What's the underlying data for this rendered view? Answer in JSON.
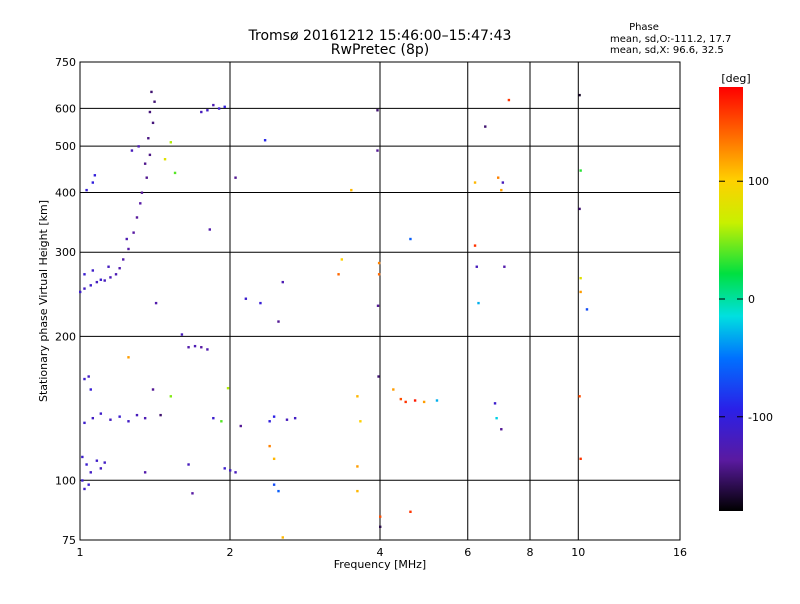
{
  "header": {
    "title_line1": "Tromsø 20161212 15:46:00–15:47:43",
    "title_line2": "RwPretec (8p)",
    "phase_label": "Phase",
    "phase_line1": "mean, sd,O:-111.2, 17.7",
    "phase_line2": "mean, sd,X:  96.6, 32.5"
  },
  "colorbar": {
    "label": "[deg]",
    "ticks": [
      {
        "value": 100,
        "label": "100"
      },
      {
        "value": 0,
        "label": "0"
      },
      {
        "value": -100,
        "label": "-100"
      }
    ],
    "range": [
      -180,
      180
    ]
  },
  "chart_data": {
    "type": "scatter",
    "xlabel": "Frequency [MHz]",
    "ylabel": "Stationary phase Virtual Height [km]",
    "xscale": "log",
    "yscale": "log",
    "xlim": [
      1,
      16
    ],
    "ylim": [
      75,
      750
    ],
    "xticks": [
      {
        "value": 1,
        "label": "1"
      },
      {
        "value": 2,
        "label": "2"
      },
      {
        "value": 4,
        "label": "4"
      },
      {
        "value": 6,
        "label": "6"
      },
      {
        "value": 8,
        "label": "8"
      },
      {
        "value": 10,
        "label": "10"
      },
      {
        "value": 16,
        "label": "16"
      }
    ],
    "yticks": [
      {
        "value": 75,
        "label": "75"
      },
      {
        "value": 100,
        "label": "100"
      },
      {
        "value": 200,
        "label": "200"
      },
      {
        "value": 300,
        "label": "300"
      },
      {
        "value": 400,
        "label": "400"
      },
      {
        "value": 500,
        "label": "500"
      },
      {
        "value": 600,
        "label": "600"
      },
      {
        "value": 750,
        "label": "750"
      }
    ],
    "grid": true,
    "points": [
      {
        "x": 1.0,
        "y": 248,
        "phase": -110
      },
      {
        "x": 1.02,
        "y": 252,
        "phase": -115
      },
      {
        "x": 1.05,
        "y": 256,
        "phase": -112
      },
      {
        "x": 1.08,
        "y": 260,
        "phase": -118
      },
      {
        "x": 1.1,
        "y": 263,
        "phase": -110
      },
      {
        "x": 1.12,
        "y": 262,
        "phase": -120
      },
      {
        "x": 1.15,
        "y": 266,
        "phase": -122
      },
      {
        "x": 1.18,
        "y": 270,
        "phase": -125
      },
      {
        "x": 1.2,
        "y": 278,
        "phase": -128
      },
      {
        "x": 1.22,
        "y": 290,
        "phase": -130
      },
      {
        "x": 1.25,
        "y": 305,
        "phase": -132
      },
      {
        "x": 1.28,
        "y": 330,
        "phase": -135
      },
      {
        "x": 1.3,
        "y": 355,
        "phase": -138
      },
      {
        "x": 1.33,
        "y": 400,
        "phase": -140
      },
      {
        "x": 1.35,
        "y": 460,
        "phase": -142
      },
      {
        "x": 1.37,
        "y": 520,
        "phase": -145
      },
      {
        "x": 1.38,
        "y": 590,
        "phase": -148
      },
      {
        "x": 1.39,
        "y": 650,
        "phase": -150
      },
      {
        "x": 1.02,
        "y": 270,
        "phase": -108
      },
      {
        "x": 1.06,
        "y": 275,
        "phase": -112
      },
      {
        "x": 1.14,
        "y": 280,
        "phase": -118
      },
      {
        "x": 1.24,
        "y": 320,
        "phase": -126
      },
      {
        "x": 1.32,
        "y": 380,
        "phase": -134
      },
      {
        "x": 1.36,
        "y": 430,
        "phase": -141
      },
      {
        "x": 1.38,
        "y": 480,
        "phase": -144
      },
      {
        "x": 1.4,
        "y": 560,
        "phase": -147
      },
      {
        "x": 1.41,
        "y": 620,
        "phase": -149
      },
      {
        "x": 1.03,
        "y": 405,
        "phase": -105
      },
      {
        "x": 1.06,
        "y": 420,
        "phase": -100
      },
      {
        "x": 1.07,
        "y": 435,
        "phase": -102
      },
      {
        "x": 1.27,
        "y": 490,
        "phase": -120
      },
      {
        "x": 1.31,
        "y": 500,
        "phase": -125
      },
      {
        "x": 1.52,
        "y": 510,
        "phase": 60
      },
      {
        "x": 1.55,
        "y": 440,
        "phase": 40
      },
      {
        "x": 1.48,
        "y": 470,
        "phase": 80
      },
      {
        "x": 1.75,
        "y": 590,
        "phase": -120
      },
      {
        "x": 1.8,
        "y": 595,
        "phase": -115
      },
      {
        "x": 1.85,
        "y": 610,
        "phase": -125
      },
      {
        "x": 1.9,
        "y": 600,
        "phase": -110
      },
      {
        "x": 1.95,
        "y": 605,
        "phase": -100
      },
      {
        "x": 1.82,
        "y": 335,
        "phase": -130
      },
      {
        "x": 2.05,
        "y": 430,
        "phase": -140
      },
      {
        "x": 2.35,
        "y": 515,
        "phase": -90
      },
      {
        "x": 1.42,
        "y": 235,
        "phase": -130
      },
      {
        "x": 2.15,
        "y": 240,
        "phase": -110
      },
      {
        "x": 2.3,
        "y": 235,
        "phase": -105
      },
      {
        "x": 2.5,
        "y": 215,
        "phase": -140
      },
      {
        "x": 2.55,
        "y": 260,
        "phase": -125
      },
      {
        "x": 1.6,
        "y": 202,
        "phase": -120
      },
      {
        "x": 1.65,
        "y": 190,
        "phase": -130
      },
      {
        "x": 1.7,
        "y": 191,
        "phase": -125
      },
      {
        "x": 1.75,
        "y": 190,
        "phase": -135
      },
      {
        "x": 1.8,
        "y": 188,
        "phase": -128
      },
      {
        "x": 1.25,
        "y": 181,
        "phase": 120
      },
      {
        "x": 1.02,
        "y": 163,
        "phase": -110
      },
      {
        "x": 1.04,
        "y": 165,
        "phase": -115
      },
      {
        "x": 1.05,
        "y": 155,
        "phase": -105
      },
      {
        "x": 1.4,
        "y": 155,
        "phase": -140
      },
      {
        "x": 1.52,
        "y": 150,
        "phase": 50
      },
      {
        "x": 1.98,
        "y": 156,
        "phase": 60
      },
      {
        "x": 1.02,
        "y": 132,
        "phase": -110
      },
      {
        "x": 1.06,
        "y": 135,
        "phase": -115
      },
      {
        "x": 1.1,
        "y": 138,
        "phase": -112
      },
      {
        "x": 1.15,
        "y": 134,
        "phase": -118
      },
      {
        "x": 1.2,
        "y": 136,
        "phase": -110
      },
      {
        "x": 1.25,
        "y": 133,
        "phase": -115
      },
      {
        "x": 1.3,
        "y": 137,
        "phase": -120
      },
      {
        "x": 1.35,
        "y": 135,
        "phase": -125
      },
      {
        "x": 1.45,
        "y": 137,
        "phase": -150
      },
      {
        "x": 1.92,
        "y": 133,
        "phase": 40
      },
      {
        "x": 1.85,
        "y": 135,
        "phase": -110
      },
      {
        "x": 2.1,
        "y": 130,
        "phase": -140
      },
      {
        "x": 2.4,
        "y": 133,
        "phase": -100
      },
      {
        "x": 2.45,
        "y": 136,
        "phase": -95
      },
      {
        "x": 2.6,
        "y": 134,
        "phase": -120
      },
      {
        "x": 2.7,
        "y": 135,
        "phase": -115
      },
      {
        "x": 2.4,
        "y": 118,
        "phase": 130
      },
      {
        "x": 2.45,
        "y": 111,
        "phase": 110
      },
      {
        "x": 1.01,
        "y": 112,
        "phase": -110
      },
      {
        "x": 1.03,
        "y": 108,
        "phase": -108
      },
      {
        "x": 1.05,
        "y": 104,
        "phase": -115
      },
      {
        "x": 1.08,
        "y": 110,
        "phase": -112
      },
      {
        "x": 1.1,
        "y": 106,
        "phase": -118
      },
      {
        "x": 1.12,
        "y": 109,
        "phase": -115
      },
      {
        "x": 1.01,
        "y": 100,
        "phase": -110
      },
      {
        "x": 1.02,
        "y": 96,
        "phase": -112
      },
      {
        "x": 1.04,
        "y": 98,
        "phase": -108
      },
      {
        "x": 1.35,
        "y": 104,
        "phase": -130
      },
      {
        "x": 1.65,
        "y": 108,
        "phase": -120
      },
      {
        "x": 1.68,
        "y": 94,
        "phase": -135
      },
      {
        "x": 1.95,
        "y": 106,
        "phase": -110
      },
      {
        "x": 2.0,
        "y": 105,
        "phase": -115
      },
      {
        "x": 2.05,
        "y": 104,
        "phase": -120
      },
      {
        "x": 2.45,
        "y": 98,
        "phase": -70
      },
      {
        "x": 2.5,
        "y": 95,
        "phase": -60
      },
      {
        "x": 2.55,
        "y": 76,
        "phase": 110
      },
      {
        "x": 3.5,
        "y": 405,
        "phase": 110
      },
      {
        "x": 3.3,
        "y": 270,
        "phase": 140
      },
      {
        "x": 3.35,
        "y": 290,
        "phase": 100
      },
      {
        "x": 3.6,
        "y": 150,
        "phase": 110
      },
      {
        "x": 3.65,
        "y": 133,
        "phase": 100
      },
      {
        "x": 3.6,
        "y": 107,
        "phase": 120
      },
      {
        "x": 3.6,
        "y": 95,
        "phase": 110
      },
      {
        "x": 3.95,
        "y": 595,
        "phase": -150
      },
      {
        "x": 3.95,
        "y": 490,
        "phase": -140
      },
      {
        "x": 3.98,
        "y": 285,
        "phase": 130
      },
      {
        "x": 3.98,
        "y": 270,
        "phase": 140
      },
      {
        "x": 3.96,
        "y": 232,
        "phase": -140
      },
      {
        "x": 3.97,
        "y": 165,
        "phase": -150
      },
      {
        "x": 4.0,
        "y": 84,
        "phase": 150
      },
      {
        "x": 4.0,
        "y": 80,
        "phase": -160
      },
      {
        "x": 4.25,
        "y": 155,
        "phase": 120
      },
      {
        "x": 4.4,
        "y": 148,
        "phase": 150
      },
      {
        "x": 4.5,
        "y": 146,
        "phase": 160
      },
      {
        "x": 4.7,
        "y": 147,
        "phase": 170
      },
      {
        "x": 4.9,
        "y": 146,
        "phase": 120
      },
      {
        "x": 5.2,
        "y": 147,
        "phase": -30
      },
      {
        "x": 4.6,
        "y": 320,
        "phase": -60
      },
      {
        "x": 4.6,
        "y": 86,
        "phase": 160
      },
      {
        "x": 6.2,
        "y": 310,
        "phase": 160
      },
      {
        "x": 6.2,
        "y": 420,
        "phase": 110
      },
      {
        "x": 6.25,
        "y": 280,
        "phase": -120
      },
      {
        "x": 6.3,
        "y": 235,
        "phase": -30
      },
      {
        "x": 6.5,
        "y": 550,
        "phase": -150
      },
      {
        "x": 6.9,
        "y": 430,
        "phase": 130
      },
      {
        "x": 7.0,
        "y": 405,
        "phase": 120
      },
      {
        "x": 7.05,
        "y": 420,
        "phase": -120
      },
      {
        "x": 7.1,
        "y": 280,
        "phase": -130
      },
      {
        "x": 7.25,
        "y": 625,
        "phase": 160
      },
      {
        "x": 6.8,
        "y": 145,
        "phase": -110
      },
      {
        "x": 6.85,
        "y": 135,
        "phase": -20
      },
      {
        "x": 7.0,
        "y": 128,
        "phase": -140
      },
      {
        "x": 10.05,
        "y": 640,
        "phase": -170
      },
      {
        "x": 10.1,
        "y": 445,
        "phase": 30
      },
      {
        "x": 10.05,
        "y": 370,
        "phase": -150
      },
      {
        "x": 10.1,
        "y": 265,
        "phase": 80
      },
      {
        "x": 10.1,
        "y": 248,
        "phase": 120
      },
      {
        "x": 10.4,
        "y": 228,
        "phase": -70
      },
      {
        "x": 10.05,
        "y": 150,
        "phase": 150
      },
      {
        "x": 10.1,
        "y": 111,
        "phase": 160
      }
    ]
  }
}
